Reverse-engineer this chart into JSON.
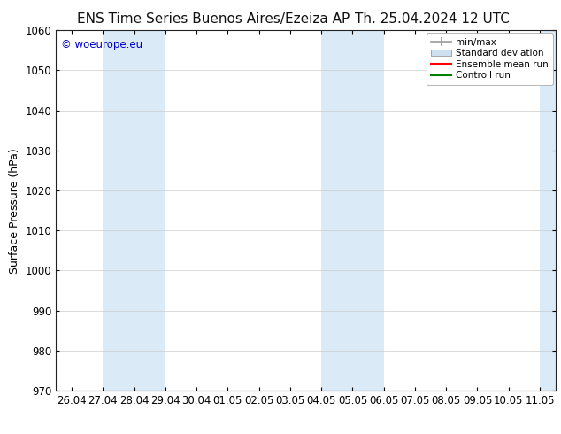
{
  "title_left": "ENS Time Series Buenos Aires/Ezeiza AP",
  "title_right": "Th. 25.04.2024 12 UTC",
  "ylabel": "Surface Pressure (hPa)",
  "ylim": [
    970,
    1060
  ],
  "yticks": [
    970,
    980,
    990,
    1000,
    1010,
    1020,
    1030,
    1040,
    1050,
    1060
  ],
  "xtick_labels": [
    "26.04",
    "27.04",
    "28.04",
    "29.04",
    "30.04",
    "01.05",
    "02.05",
    "03.05",
    "04.05",
    "05.05",
    "06.05",
    "07.05",
    "08.05",
    "09.05",
    "10.05",
    "11.05"
  ],
  "background_color": "#ffffff",
  "plot_bg_color": "#ffffff",
  "shaded_regions": [
    {
      "xstart": 1,
      "xend": 3,
      "color": "#daeaf7"
    },
    {
      "xstart": 8,
      "xend": 10,
      "color": "#daeaf7"
    },
    {
      "xstart": 15,
      "xend": 16,
      "color": "#daeaf7"
    }
  ],
  "legend_entries": [
    {
      "label": "min/max",
      "color": "#aaaaaa",
      "style": "minmax"
    },
    {
      "label": "Standard deviation",
      "color": "#cce0f0",
      "style": "box"
    },
    {
      "label": "Ensemble mean run",
      "color": "#ff0000",
      "style": "line"
    },
    {
      "label": "Controll run",
      "color": "#008000",
      "style": "line"
    }
  ],
  "watermark": "© woeurope.eu",
  "watermark_color": "#0000cc",
  "title_fontsize": 11,
  "tick_fontsize": 8.5,
  "ylabel_fontsize": 9,
  "legend_fontsize": 7.5
}
